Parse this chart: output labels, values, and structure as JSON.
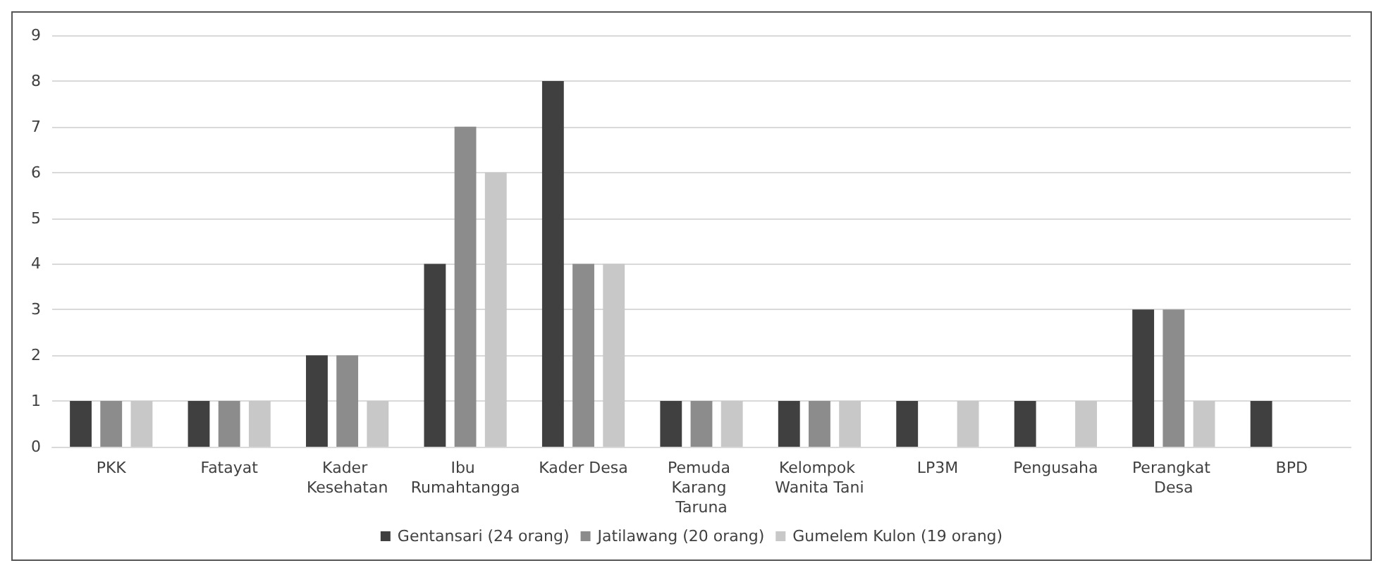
{
  "chart_data": {
    "type": "bar",
    "categories": [
      "PKK",
      "Fatayat",
      "Kader Kesehatan",
      "Ibu Rumahtangga",
      "Kader Desa",
      "Pemuda Karang Taruna",
      "Kelompok Wanita Tani",
      "LP3M",
      "Pengusaha",
      "Perangkat Desa",
      "BPD"
    ],
    "series": [
      {
        "name": "Gentansari (24 orang)",
        "color": "#404040",
        "values": [
          1,
          1,
          2,
          4,
          8,
          1,
          1,
          1,
          1,
          3,
          1
        ]
      },
      {
        "name": "Jatilawang (20 orang)",
        "color": "#8c8c8c",
        "values": [
          1,
          1,
          2,
          7,
          4,
          1,
          1,
          0,
          0,
          3,
          0
        ]
      },
      {
        "name": "Gumelem Kulon (19 orang)",
        "color": "#c8c8c8",
        "values": [
          1,
          1,
          1,
          6,
          4,
          1,
          1,
          1,
          1,
          1,
          0
        ]
      }
    ],
    "ylim": [
      0,
      9
    ],
    "yticks": [
      0,
      1,
      2,
      3,
      4,
      5,
      6,
      7,
      8,
      9
    ],
    "grid": "y",
    "legend": "bottom"
  }
}
